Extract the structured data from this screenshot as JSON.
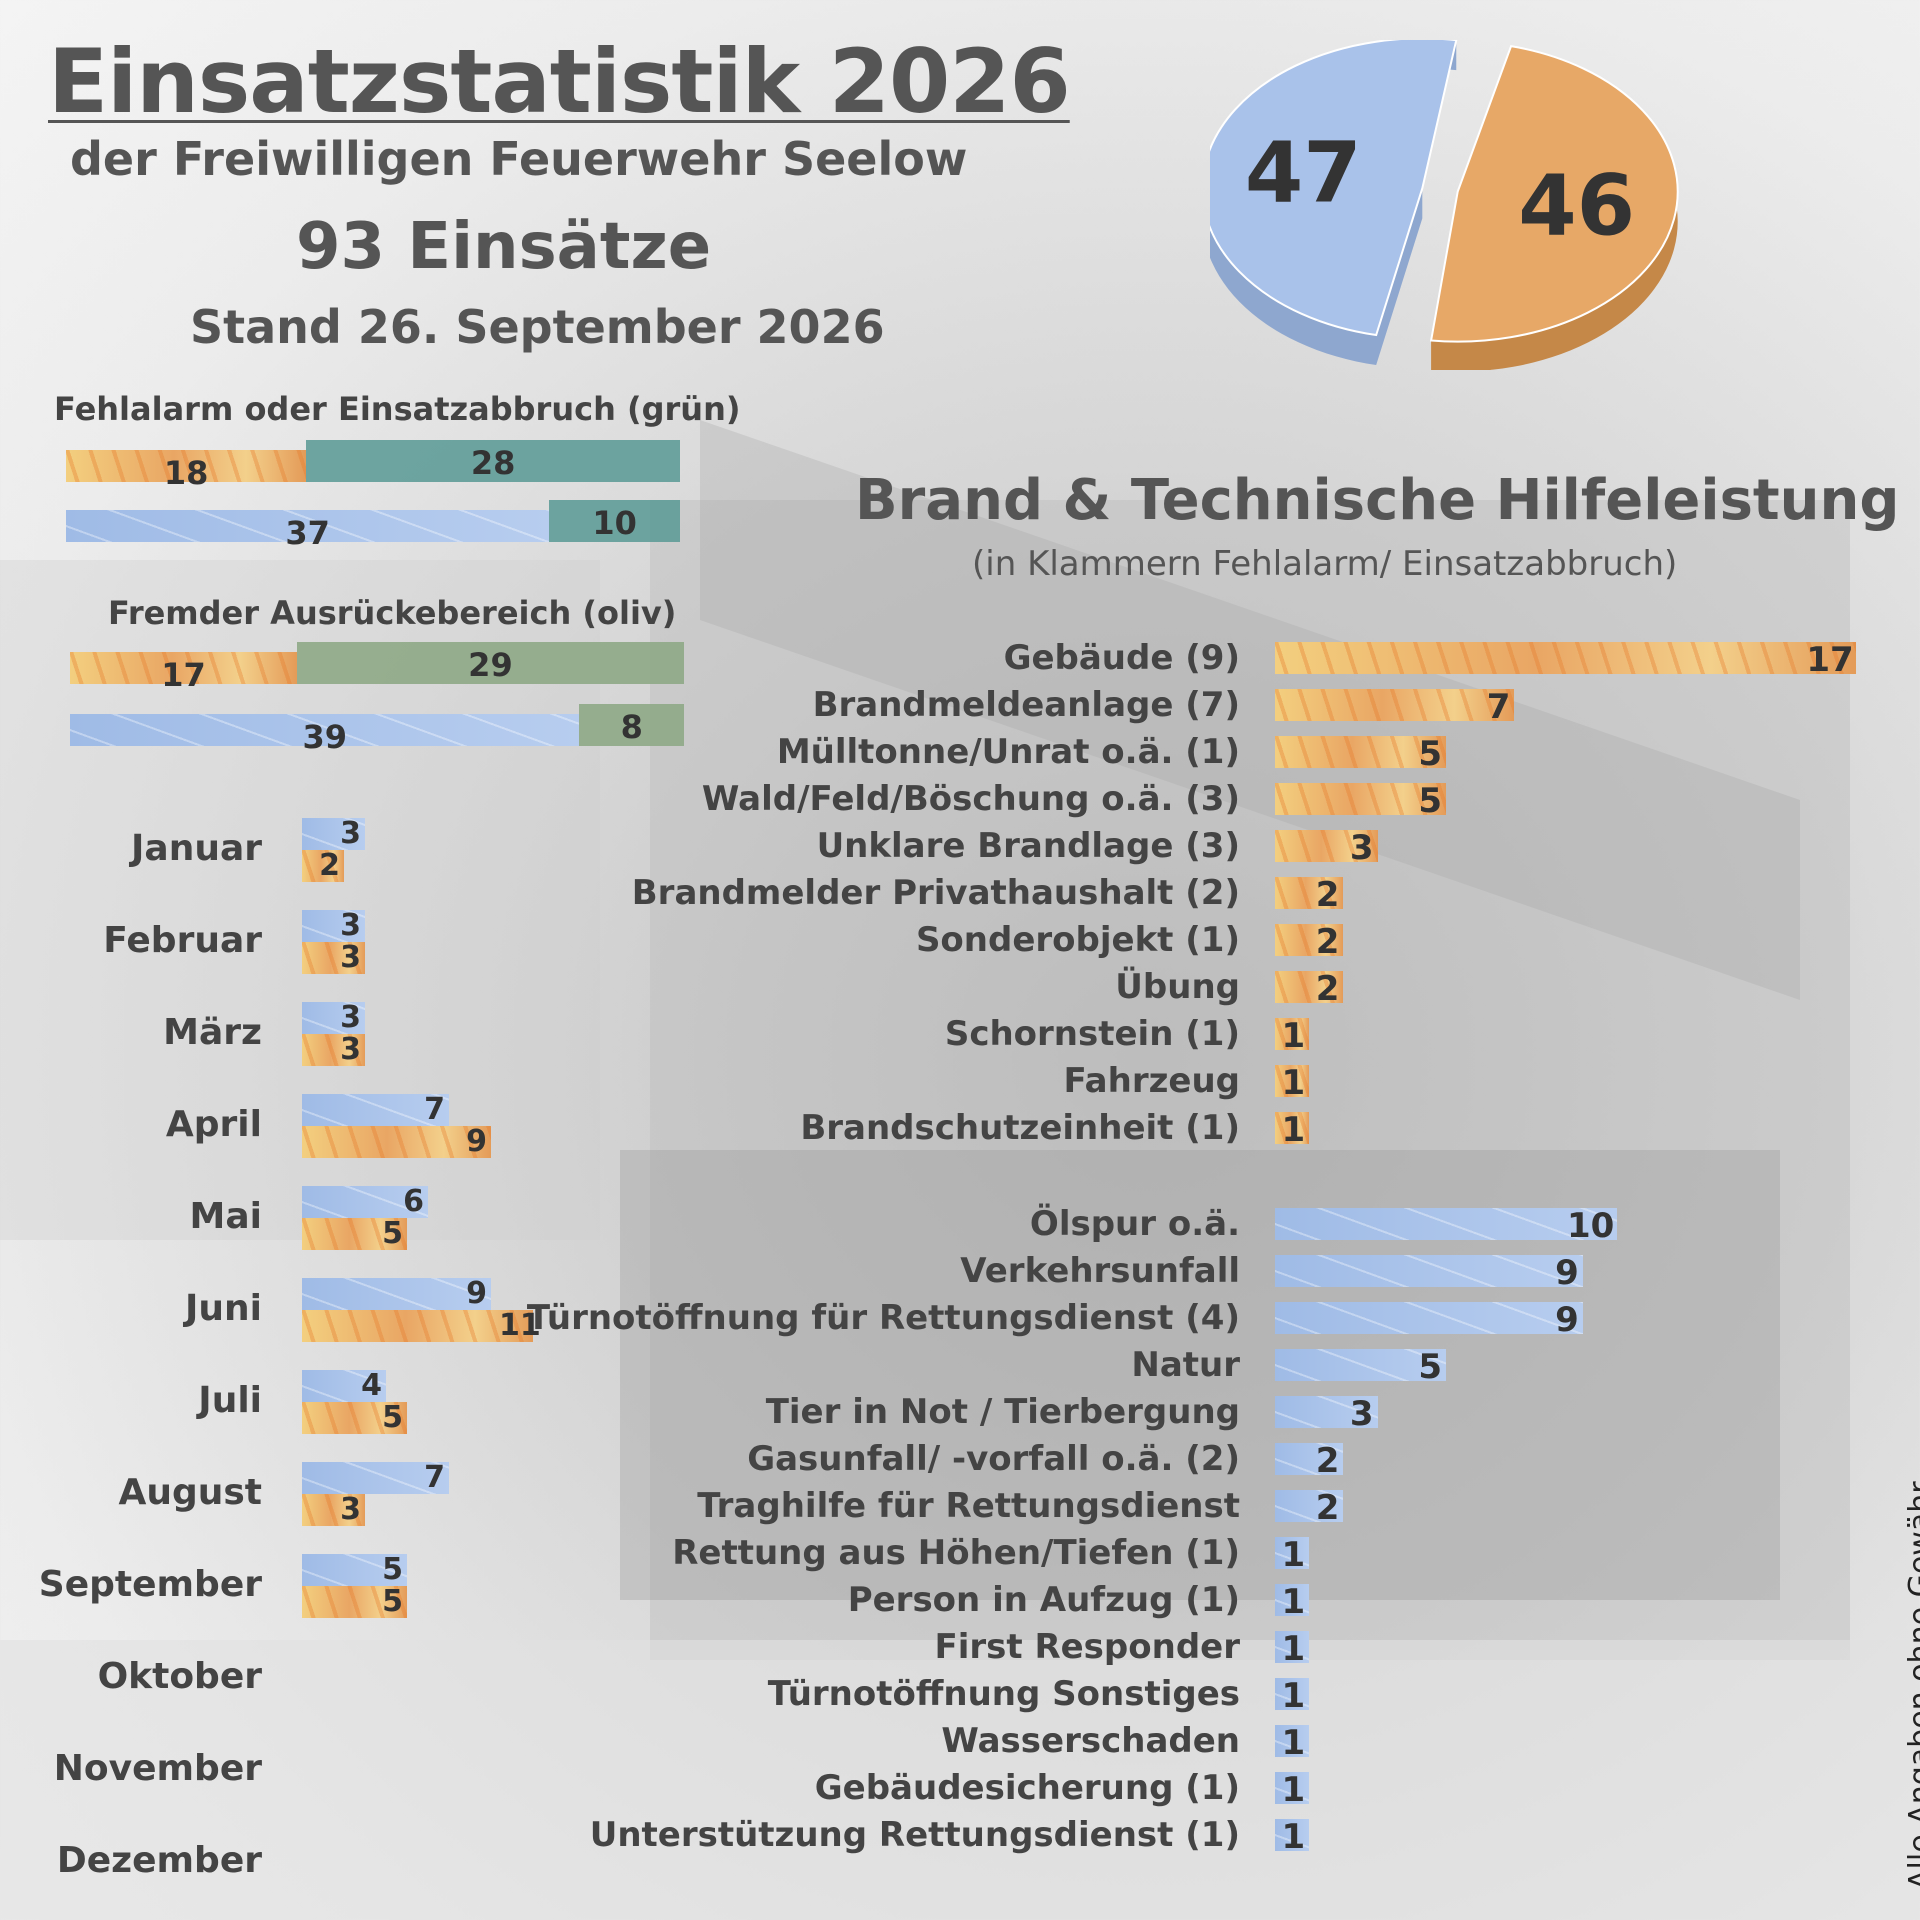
{
  "header": {
    "title": "Einsatzstatistik 2026",
    "subtitle": "der Freiwilligen Feuerwehr Seelow",
    "total": "93 Einsätze",
    "stand": "Stand 26. September 2026"
  },
  "disclaimer": "Alle Angaben ohne Gewähr",
  "colors": {
    "fire": "#e9a664",
    "technical": "#a7c1ea",
    "green": "#5f9c98",
    "olive": "#8ea886",
    "text": "#444444"
  },
  "chart_data": [
    {
      "id": "pie",
      "type": "pie",
      "slices": [
        {
          "label": "46",
          "value": 46,
          "color": "#e9a664"
        },
        {
          "label": "47",
          "value": 47,
          "color": "#a7c1ea"
        }
      ]
    },
    {
      "id": "fehlalarm",
      "type": "bar",
      "title": "Fehlalarm oder Einsatzabbruch (grün)",
      "stacked": true,
      "rows": [
        {
          "segments": [
            {
              "value": 18,
              "color": "fire"
            },
            {
              "value": 28,
              "color": "green"
            }
          ]
        },
        {
          "segments": [
            {
              "value": 37,
              "color": "blue"
            },
            {
              "value": 10,
              "color": "green"
            }
          ]
        }
      ]
    },
    {
      "id": "fremd",
      "type": "bar",
      "title": "Fremder Ausrückebereich (oliv)",
      "stacked": true,
      "rows": [
        {
          "segments": [
            {
              "value": 17,
              "color": "fire"
            },
            {
              "value": 29,
              "color": "olive"
            }
          ]
        },
        {
          "segments": [
            {
              "value": 39,
              "color": "blue"
            },
            {
              "value": 8,
              "color": "olive"
            }
          ]
        }
      ]
    },
    {
      "id": "monthly",
      "type": "bar",
      "orientation": "horizontal",
      "categories": [
        "Januar",
        "Februar",
        "März",
        "April",
        "Mai",
        "Juni",
        "Juli",
        "August",
        "September",
        "Oktober",
        "November",
        "Dezember"
      ],
      "series": [
        {
          "values": [
            3,
            3,
            3,
            7,
            6,
            9,
            4,
            7,
            5,
            null,
            null,
            null
          ],
          "color": "blue"
        },
        {
          "values": [
            2,
            3,
            3,
            9,
            5,
            11,
            5,
            3,
            5,
            null,
            null,
            null
          ],
          "color": "fire"
        }
      ]
    },
    {
      "id": "brand",
      "type": "bar",
      "orientation": "horizontal",
      "title": "Brand & Technische Hilfeleistung",
      "subtitle": "(in Klammern Fehlalarm/ Einsatzabbruch)",
      "categories": [
        "Gebäude (9)",
        "Brandmeldeanlage (7)",
        "Mülltonne/Unrat o.ä. (1)",
        "Wald/Feld/Böschung o.ä. (3)",
        "Unklare Brandlage (3)",
        "Brandmelder Privathaushalt (2)",
        "Sonderobjekt (1)",
        "Übung",
        "Schornstein (1)",
        "Fahrzeug",
        "Brandschutzeinheit (1)"
      ],
      "values": [
        17,
        7,
        5,
        5,
        3,
        2,
        2,
        2,
        1,
        1,
        1
      ],
      "color": "fire"
    },
    {
      "id": "th",
      "type": "bar",
      "orientation": "horizontal",
      "categories": [
        "Ölspur o.ä.",
        "Verkehrsunfall",
        "Türnotöffnung für Rettungsdienst (4)",
        "Natur",
        "Tier in Not / Tierbergung",
        "Gasunfall/ -vorfall o.ä. (2)",
        "Traghilfe für Rettungsdienst",
        "Rettung aus Höhen/Tiefen (1)",
        "Person in Aufzug (1)",
        "First Responder",
        "Türnotöffnung Sonstiges",
        "Wasserschaden",
        "Gebäudesicherung (1)",
        "Unterstützung Rettungsdienst (1)"
      ],
      "values": [
        10,
        9,
        9,
        5,
        3,
        2,
        2,
        1,
        1,
        1,
        1,
        1,
        1,
        1
      ],
      "color": "blue"
    }
  ]
}
